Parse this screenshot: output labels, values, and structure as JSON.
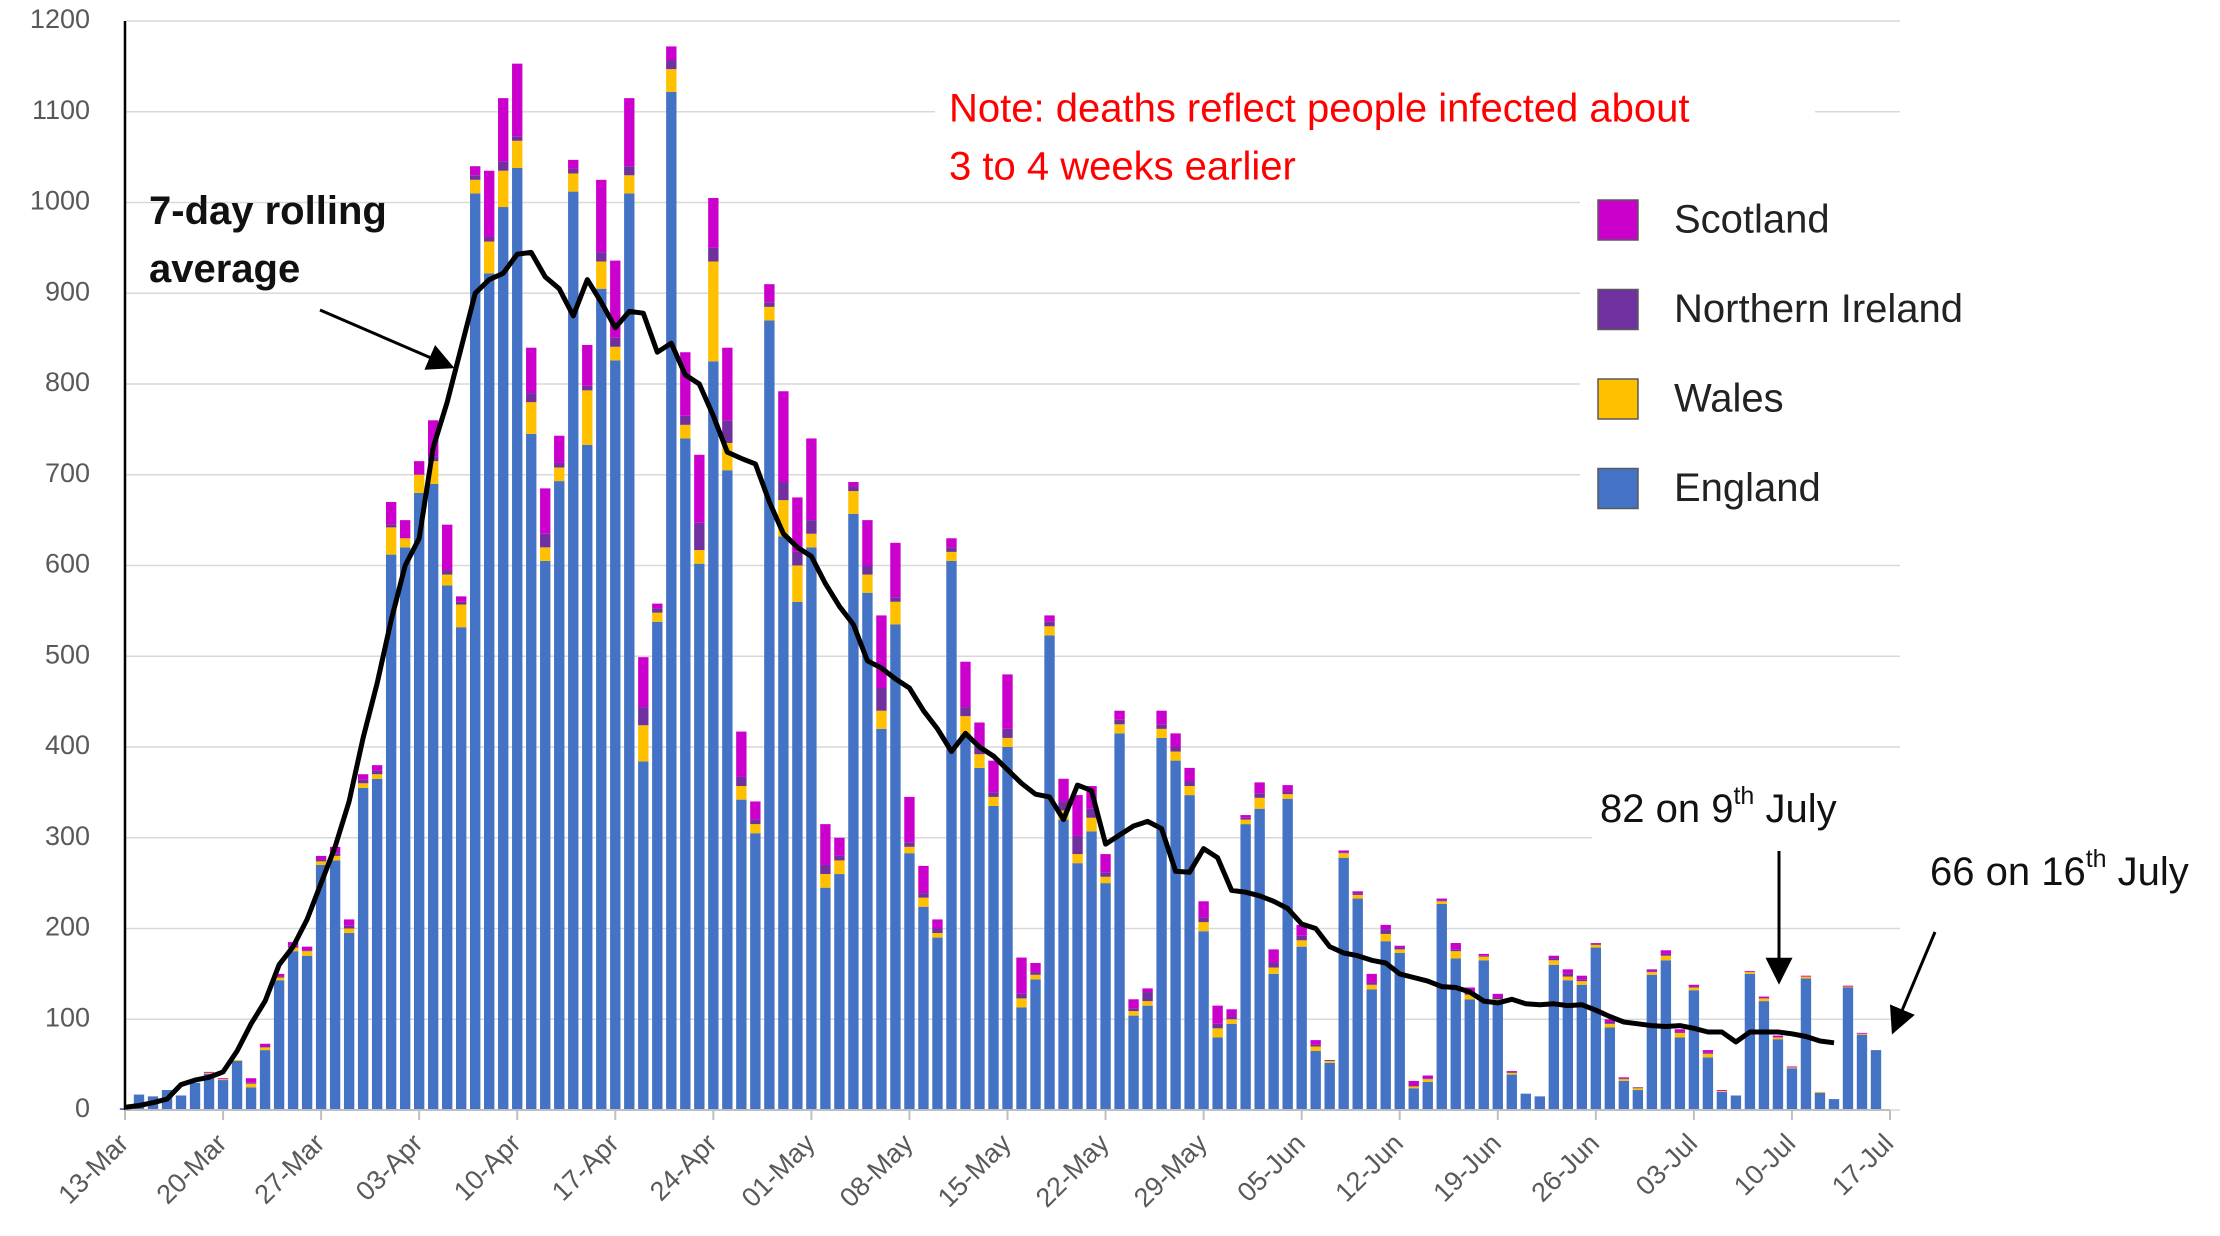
{
  "chart_data": {
    "type": "bar",
    "stacked": true,
    "categories": [
      "13-Mar",
      null,
      null,
      null,
      null,
      null,
      null,
      "20-Mar",
      null,
      null,
      null,
      null,
      null,
      null,
      "27-Mar",
      null,
      null,
      null,
      null,
      null,
      null,
      "03-Apr",
      null,
      null,
      null,
      null,
      null,
      null,
      "10-Apr",
      null,
      null,
      null,
      null,
      null,
      null,
      "17-Apr",
      null,
      null,
      null,
      null,
      null,
      null,
      "24-Apr",
      null,
      null,
      null,
      null,
      null,
      null,
      "01-May",
      null,
      null,
      null,
      null,
      null,
      null,
      "08-May",
      null,
      null,
      null,
      null,
      null,
      null,
      "15-May",
      null,
      null,
      null,
      null,
      null,
      null,
      "22-May",
      null,
      null,
      null,
      null,
      null,
      null,
      "29-May",
      null,
      null,
      null,
      null,
      null,
      null,
      "05-Jun",
      null,
      null,
      null,
      null,
      null,
      null,
      "12-Jun",
      null,
      null,
      null,
      null,
      null,
      null,
      "19-Jun",
      null,
      null,
      null,
      null,
      null,
      null,
      "26-Jun",
      null,
      null,
      null,
      null,
      null,
      null,
      "03-Jul",
      null,
      null,
      null,
      null,
      null,
      null,
      "10-Jul",
      null,
      null,
      null,
      null,
      null,
      null,
      "17-Jul"
    ],
    "series": [
      {
        "name": "England",
        "color": "#4472c4",
        "values": [
          2,
          17,
          15,
          22,
          16,
          30,
          40,
          33,
          54,
          25,
          66,
          143,
          175,
          170,
          270,
          275,
          195,
          355,
          365,
          612,
          620,
          680,
          690,
          578,
          532,
          1010,
          922,
          995,
          1038,
          745,
          605,
          693,
          1012,
          733,
          905,
          826,
          1010,
          384,
          538,
          1122,
          740,
          602,
          825,
          705,
          342,
          305,
          870,
          632,
          560,
          620,
          245,
          260,
          657,
          570,
          420,
          535,
          283,
          224,
          190,
          605,
          414,
          377,
          335,
          400,
          113,
          144,
          523,
          320,
          272,
          307,
          250,
          415,
          104,
          115,
          410,
          385,
          347,
          197,
          80,
          95,
          315,
          332,
          150,
          343,
          180,
          65,
          52,
          278,
          233,
          133,
          186,
          173,
          24,
          31,
          227,
          167,
          122,
          165,
          118,
          39,
          18,
          15,
          160,
          143,
          138,
          179,
          91,
          32,
          22,
          149,
          165,
          80,
          132,
          58,
          20,
          16,
          150,
          120,
          78,
          46,
          145,
          19,
          12,
          135,
          83,
          66,
          null
        ]
      },
      {
        "name": "Wales",
        "color": "#ffc000",
        "values": [
          0,
          0,
          0,
          0,
          0,
          0,
          1,
          1,
          1,
          4,
          3,
          3,
          4,
          5,
          4,
          5,
          5,
          5,
          5,
          30,
          10,
          20,
          25,
          12,
          25,
          15,
          35,
          40,
          30,
          35,
          15,
          15,
          20,
          60,
          30,
          15,
          20,
          40,
          10,
          25,
          15,
          15,
          110,
          30,
          15,
          10,
          15,
          40,
          40,
          15,
          15,
          15,
          25,
          20,
          20,
          25,
          7,
          10,
          5,
          10,
          20,
          15,
          10,
          10,
          10,
          5,
          10,
          10,
          10,
          15,
          7,
          10,
          5,
          5,
          10,
          10,
          10,
          10,
          10,
          5,
          5,
          12,
          7,
          5,
          7,
          5,
          2,
          5,
          4,
          5,
          8,
          4,
          2,
          3,
          3,
          8,
          5,
          4,
          4,
          2,
          0,
          0,
          5,
          4,
          4,
          3,
          4,
          2,
          2,
          3,
          5,
          5,
          3,
          4,
          1,
          0,
          2,
          3,
          2,
          1,
          2,
          1,
          0,
          1,
          1,
          0,
          null
        ]
      },
      {
        "name": "Northern Ireland",
        "color": "#7030a0",
        "values": [
          0,
          0,
          0,
          0,
          0,
          0,
          0,
          0,
          0,
          1,
          1,
          1,
          2,
          1,
          2,
          3,
          3,
          4,
          4,
          3,
          0,
          0,
          5,
          5,
          3,
          5,
          5,
          10,
          5,
          10,
          15,
          5,
          5,
          5,
          10,
          10,
          10,
          20,
          5,
          10,
          10,
          30,
          15,
          25,
          10,
          5,
          5,
          20,
          15,
          15,
          10,
          5,
          5,
          10,
          25,
          5,
          5,
          5,
          5,
          5,
          10,
          10,
          5,
          10,
          5,
          3,
          5,
          10,
          20,
          10,
          5,
          5,
          3,
          10,
          5,
          5,
          5,
          5,
          5,
          3,
          2,
          5,
          5,
          3,
          5,
          2,
          1,
          1,
          2,
          2,
          5,
          2,
          1,
          1,
          1,
          2,
          3,
          1,
          2,
          1,
          0,
          0,
          2,
          3,
          2,
          1,
          2,
          1,
          1,
          1,
          2,
          1,
          1,
          1,
          0,
          0,
          0,
          0,
          0,
          0,
          0,
          0,
          0,
          0,
          0,
          0,
          null
        ]
      },
      {
        "name": "Scotland",
        "color": "#cc00cc",
        "values": [
          0,
          0,
          0,
          0,
          0,
          0,
          1,
          1,
          0,
          5,
          3,
          3,
          4,
          4,
          4,
          7,
          7,
          6,
          6,
          25,
          20,
          15,
          40,
          50,
          6,
          10,
          73,
          70,
          80,
          50,
          50,
          30,
          10,
          45,
          80,
          85,
          75,
          55,
          5,
          15,
          70,
          75,
          55,
          80,
          50,
          20,
          20,
          100,
          60,
          90,
          45,
          20,
          5,
          50,
          80,
          60,
          50,
          30,
          10,
          10,
          50,
          25,
          35,
          60,
          40,
          10,
          7,
          25,
          45,
          25,
          20,
          10,
          10,
          4,
          15,
          15,
          15,
          18,
          20,
          8,
          3,
          12,
          15,
          7,
          12,
          5,
          0,
          2,
          2,
          10,
          5,
          2,
          5,
          3,
          2,
          7,
          5,
          2,
          4,
          1,
          0,
          0,
          3,
          5,
          4,
          1,
          3,
          1,
          0,
          2,
          4,
          3,
          2,
          3,
          1,
          0,
          1,
          2,
          2,
          1,
          1,
          0,
          0,
          1,
          1,
          0,
          null
        ]
      }
    ],
    "rolling_average": {
      "name": "7-day rolling average",
      "color": "#000000",
      "values": [
        3,
        5,
        8,
        12,
        28,
        33,
        36,
        42,
        65,
        95,
        120,
        160,
        180,
        210,
        250,
        290,
        340,
        410,
        470,
        540,
        600,
        630,
        730,
        780,
        840,
        900,
        915,
        922,
        943,
        945,
        918,
        905,
        875,
        915,
        890,
        862,
        880,
        878,
        835,
        845,
        810,
        800,
        765,
        725,
        718,
        712,
        670,
        635,
        620,
        610,
        580,
        555,
        535,
        495,
        487,
        475,
        465,
        440,
        420,
        395,
        415,
        400,
        390,
        375,
        360,
        348,
        345,
        320,
        358,
        352,
        293,
        303,
        313,
        318,
        310,
        263,
        262,
        288,
        278,
        242,
        240,
        236,
        230,
        222,
        205,
        200,
        180,
        173,
        170,
        165,
        162,
        150,
        146,
        142,
        136,
        135,
        130,
        120,
        118,
        122,
        117,
        116,
        117,
        115,
        116,
        110,
        103,
        97,
        95,
        93,
        92,
        93,
        90,
        86,
        86,
        75,
        86,
        86,
        86,
        84,
        81,
        76,
        74,
        null,
        null,
        null,
        null
      ]
    },
    "ylim": [
      0,
      1200
    ],
    "yticks": [
      0,
      100,
      200,
      300,
      400,
      500,
      600,
      700,
      800,
      900,
      1000,
      1100,
      1200
    ],
    "grid": true,
    "note": [
      "Note: deaths reflect people infected about",
      "3 to 4 weeks earlier"
    ],
    "callouts": [
      [
        "82 on 9",
        "th",
        " July"
      ],
      [
        "66 on 16",
        "th",
        " July"
      ]
    ]
  }
}
